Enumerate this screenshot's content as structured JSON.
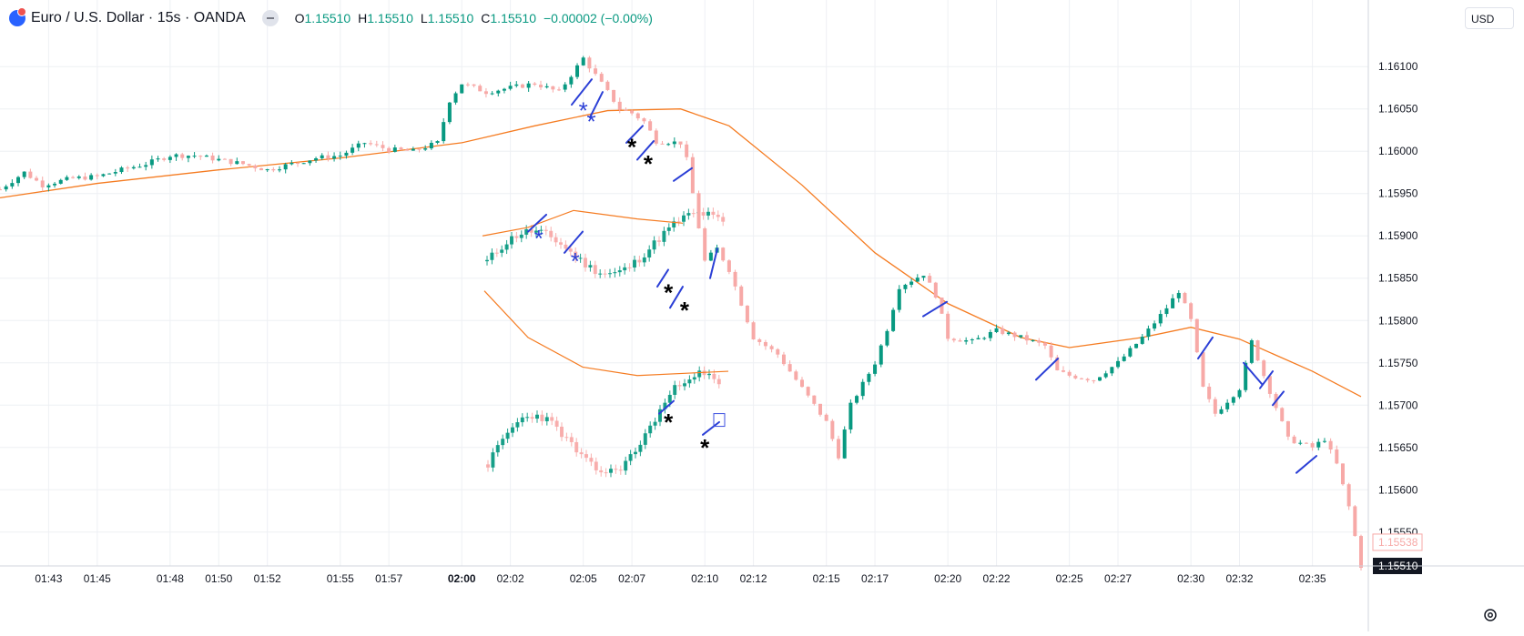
{
  "header": {
    "symbol": "Euro / U.S. Dollar · 15s · OANDA",
    "o_label": "O",
    "o_value": "1.15510",
    "h_label": "H",
    "h_value": "1.15510",
    "l_label": "L",
    "l_value": "1.15510",
    "c_label": "C",
    "c_value": "1.15510",
    "change": "−0.00002 (−0.00%)"
  },
  "currency_button": "USD",
  "colors": {
    "up": "#089981",
    "down": "#f7a9a7",
    "ma": "#f57c22",
    "annotation_line": "#2b3fd6",
    "annotation_blue_asterisk": "#2b3fd6",
    "annotation_black_asterisk": "#000000",
    "grid": "#eef0f4"
  },
  "icons": [
    "globe-icon",
    "hide-legend-icon",
    "settings-gear-icon"
  ],
  "chart_data": {
    "type": "candlestick",
    "yaxis": {
      "range": [
        1.1551,
        1.1614
      ],
      "tick_labels": [
        "1.16100",
        "1.16050",
        "1.16000",
        "1.15950",
        "1.15900",
        "1.15850",
        "1.15800",
        "1.15750",
        "1.15700",
        "1.15650",
        "1.15600",
        "1.15550"
      ],
      "last_price_label": "1.15510",
      "secondary_price_label": "1.15538"
    },
    "xaxis": {
      "tick_labels": [
        "01:43",
        "01:45",
        "01:48",
        "01:50",
        "01:52",
        "01:55",
        "01:57",
        "02:00",
        "02:02",
        "02:05",
        "02:07",
        "02:10",
        "02:12",
        "02:15",
        "02:17",
        "02:20",
        "02:22",
        "02:25",
        "02:27",
        "02:30",
        "02:32",
        "02:35"
      ],
      "bold_label": "02:00"
    },
    "series": [
      {
        "type": "candles",
        "anchors": [
          [
            "01:41",
            1.15955
          ],
          [
            "01:42",
            1.15975
          ],
          [
            "01:42:45",
            1.1596
          ],
          [
            "01:43",
            1.15962
          ],
          [
            "01:44",
            1.15968
          ],
          [
            "01:45",
            1.1597
          ],
          [
            "01:46",
            1.15978
          ],
          [
            "01:47",
            1.15985
          ],
          [
            "01:48",
            1.15995
          ],
          [
            "01:49",
            1.15995
          ],
          [
            "01:50",
            1.1599
          ],
          [
            "01:51",
            1.15985
          ],
          [
            "01:52",
            1.15978
          ],
          [
            "01:53",
            1.15985
          ],
          [
            "01:54",
            1.15992
          ],
          [
            "01:55",
            1.15995
          ],
          [
            "01:56",
            1.1601
          ],
          [
            "01:57",
            1.16002
          ],
          [
            "01:58",
            1.16
          ],
          [
            "01:59",
            1.1601
          ],
          [
            "01:59:30",
            1.1606
          ],
          [
            "02:00",
            1.1608
          ],
          [
            "02:00:30",
            1.16075
          ],
          [
            "02:01",
            1.1607
          ],
          [
            "02:02",
            1.16075
          ],
          [
            "02:03",
            1.1608
          ],
          [
            "02:04",
            1.1607
          ],
          [
            "02:05",
            1.1611
          ],
          [
            "02:05:30",
            1.1609
          ],
          [
            "02:06",
            1.1607
          ],
          [
            "02:06:30",
            1.1605
          ],
          [
            "02:07",
            1.16045
          ],
          [
            "02:07:30",
            1.16035
          ],
          [
            "02:08",
            1.16012
          ],
          [
            "02:09",
            1.1601
          ],
          [
            "02:09:15",
            1.1599
          ],
          [
            "02:10",
            1.1587
          ],
          [
            "02:10:30",
            1.15885
          ],
          [
            "02:11",
            1.1586
          ],
          [
            "02:12",
            1.1578
          ],
          [
            "02:13",
            1.1576
          ],
          [
            "02:14",
            1.1572
          ],
          [
            "02:15",
            1.1568
          ],
          [
            "02:15:30",
            1.1564
          ],
          [
            "02:16",
            1.157
          ],
          [
            "02:17",
            1.1575
          ],
          [
            "02:17:30",
            1.1579
          ],
          [
            "02:18",
            1.1584
          ],
          [
            "02:19",
            1.15855
          ],
          [
            "02:19:30",
            1.1583
          ],
          [
            "02:20",
            1.1578
          ],
          [
            "02:21",
            1.15775
          ],
          [
            "02:22",
            1.15788
          ],
          [
            "02:23",
            1.1578
          ],
          [
            "02:24",
            1.1577
          ],
          [
            "02:24:30",
            1.1574
          ],
          [
            "02:25",
            1.15735
          ],
          [
            "02:26",
            1.1573
          ],
          [
            "02:27",
            1.1575
          ],
          [
            "02:28",
            1.1578
          ],
          [
            "02:29",
            1.15815
          ],
          [
            "02:29:30",
            1.15835
          ],
          [
            "02:30",
            1.158
          ],
          [
            "02:30:30",
            1.1572
          ],
          [
            "02:31",
            1.1569
          ],
          [
            "02:32",
            1.1572
          ],
          [
            "02:32:30",
            1.15775
          ],
          [
            "02:33",
            1.15735
          ],
          [
            "02:34",
            1.1566
          ],
          [
            "02:35",
            1.1565
          ],
          [
            "02:35:30",
            1.1566
          ],
          [
            "02:36",
            1.1563
          ],
          [
            "02:36:30",
            1.1558
          ],
          [
            "02:37",
            1.1551
          ]
        ]
      },
      {
        "type": "moving_average",
        "points": [
          [
            "01:41",
            1.15945
          ],
          [
            "01:45",
            1.15962
          ],
          [
            "01:50",
            1.15978
          ],
          [
            "01:55",
            1.15992
          ],
          [
            "02:00",
            1.1601
          ],
          [
            "02:03",
            1.1603
          ],
          [
            "02:06",
            1.16048
          ],
          [
            "02:09",
            1.1605
          ],
          [
            "02:11",
            1.1603
          ],
          [
            "02:14",
            1.1596
          ],
          [
            "02:17",
            1.1588
          ],
          [
            "02:20",
            1.1582
          ],
          [
            "02:23",
            1.1578
          ],
          [
            "02:25",
            1.15768
          ],
          [
            "02:28",
            1.1578
          ],
          [
            "02:30",
            1.15792
          ],
          [
            "02:32",
            1.15778
          ],
          [
            "02:35",
            1.1574
          ],
          [
            "02:37",
            1.1571
          ]
        ]
      }
    ],
    "annotations": [
      {
        "type": "blue_asterisk",
        "at": [
          "02:05",
          1.16048
        ]
      },
      {
        "type": "blue_asterisk",
        "at": [
          "02:05:20",
          1.16035
        ]
      },
      {
        "type": "black_asterisk",
        "at": [
          "02:07",
          1.16005
        ]
      },
      {
        "type": "black_asterisk",
        "at": [
          "02:07:40",
          1.15985
        ]
      },
      {
        "type": "blue_asterisk",
        "at": [
          "02:03:10",
          1.15897
        ]
      },
      {
        "type": "blue_asterisk",
        "at": [
          "02:04:40",
          1.1587
        ]
      },
      {
        "type": "black_asterisk",
        "at": [
          "02:08:30",
          1.15833
        ]
      },
      {
        "type": "black_asterisk",
        "at": [
          "02:09:10",
          1.15812
        ]
      },
      {
        "type": "black_asterisk",
        "at": [
          "02:08:30",
          1.1568
        ]
      },
      {
        "type": "black_asterisk",
        "at": [
          "02:10",
          1.1565
        ]
      }
    ]
  }
}
